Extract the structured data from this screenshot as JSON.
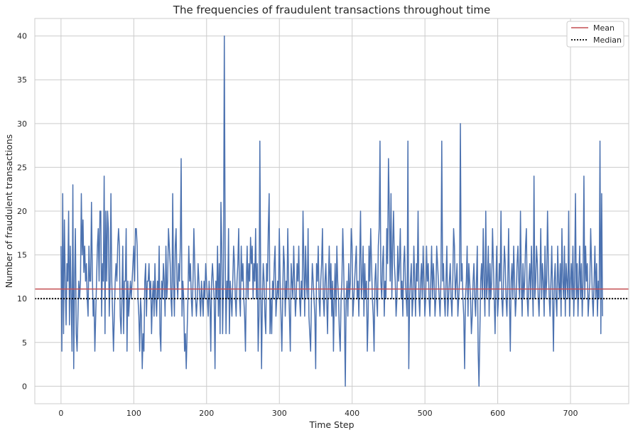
{
  "chart_data": {
    "type": "line",
    "title": "The frequencies of fraudulent transactions throughout time",
    "xlabel": "Time Step",
    "ylabel": "Number of fraudulent transactions",
    "xlim": [
      -36,
      780
    ],
    "ylim": [
      -2,
      42
    ],
    "xticks": [
      0,
      100,
      200,
      300,
      400,
      500,
      600,
      700
    ],
    "yticks": [
      0,
      5,
      10,
      15,
      20,
      25,
      30,
      35,
      40
    ],
    "grid": true,
    "legend_position": "top-right",
    "colors": {
      "series": "#4c72b0",
      "mean": "#c44e52",
      "median": "#000000",
      "grid": "#cccccc",
      "frame": "#cccccc"
    },
    "series": [
      {
        "values": [
          16,
          4,
          22,
          6,
          19,
          12,
          7,
          14,
          12,
          20,
          7,
          16,
          10,
          4,
          23,
          2,
          12,
          18,
          6,
          4,
          8,
          12,
          10,
          12,
          22,
          15,
          19,
          13,
          16,
          12,
          14,
          10,
          8,
          16,
          12,
          12,
          21,
          13,
          8,
          10,
          4,
          8,
          12,
          16,
          18,
          12,
          20,
          20,
          8,
          14,
          12,
          24,
          6,
          20,
          12,
          20,
          18,
          8,
          12,
          22,
          12,
          8,
          4,
          8,
          12,
          14,
          12,
          16,
          18,
          16,
          8,
          6,
          10,
          16,
          6,
          12,
          12,
          18,
          4,
          12,
          8,
          10,
          12,
          10,
          12,
          14,
          16,
          12,
          18,
          18,
          16,
          10,
          8,
          4,
          10,
          8,
          2,
          6,
          4,
          12,
          14,
          8,
          12,
          12,
          14,
          10,
          12,
          6,
          10,
          12,
          8,
          14,
          10,
          8,
          12,
          10,
          16,
          6,
          4,
          12,
          10,
          14,
          12,
          8,
          16,
          10,
          12,
          18,
          16,
          14,
          10,
          8,
          22,
          12,
          8,
          16,
          18,
          12,
          10,
          14,
          12,
          16,
          26,
          8,
          12,
          10,
          4,
          6,
          2,
          6,
          10,
          16,
          12,
          14,
          10,
          8,
          12,
          18,
          14,
          10,
          8,
          10,
          14,
          12,
          10,
          8,
          12,
          10,
          8,
          12,
          10,
          14,
          12,
          10,
          8,
          12,
          10,
          4,
          12,
          14,
          12,
          10,
          2,
          12,
          10,
          16,
          8,
          14,
          6,
          21,
          16,
          6,
          12,
          40,
          16,
          6,
          12,
          10,
          18,
          6,
          12,
          10,
          8,
          12,
          16,
          14,
          10,
          8,
          12,
          14,
          18,
          10,
          8,
          16,
          12,
          14,
          10,
          8,
          4,
          12,
          16,
          10,
          14,
          12,
          17,
          14,
          16,
          10,
          14,
          12,
          18,
          10,
          14,
          4,
          8,
          28,
          12,
          2,
          10,
          14,
          12,
          8,
          6,
          14,
          12,
          18,
          22,
          6,
          10,
          6,
          12,
          10,
          14,
          16,
          8,
          10,
          12,
          10,
          18,
          12,
          8,
          4,
          10,
          16,
          14,
          8,
          12,
          10,
          18,
          12,
          8,
          4,
          14,
          12,
          10,
          16,
          12,
          8,
          10,
          14,
          12,
          16,
          10,
          8,
          12,
          10,
          20,
          14,
          8,
          16,
          12,
          10,
          18,
          8,
          6,
          4,
          10,
          14,
          12,
          10,
          8,
          2,
          14,
          12,
          16,
          10,
          8,
          12,
          14,
          18,
          10,
          8,
          12,
          14,
          10,
          6,
          12,
          16,
          10,
          14,
          8,
          12,
          4,
          10,
          14,
          8,
          16,
          12,
          10,
          6,
          4,
          10,
          12,
          18,
          14,
          8,
          0,
          10,
          12,
          8,
          14,
          10,
          12,
          18,
          16,
          8,
          10,
          12,
          14,
          16,
          10,
          12,
          8,
          14,
          20,
          10,
          12,
          16,
          8,
          14,
          10,
          12,
          4,
          8,
          16,
          12,
          18,
          14,
          10,
          8,
          4,
          12,
          14,
          10,
          8,
          16,
          18,
          28,
          12,
          10,
          14,
          16,
          8,
          12,
          10,
          18,
          14,
          26,
          20,
          12,
          22,
          10,
          16,
          20,
          14,
          12,
          8,
          10,
          16,
          12,
          14,
          18,
          10,
          12,
          8,
          14,
          16,
          12,
          10,
          8,
          28,
          2,
          10,
          12,
          14,
          8,
          10,
          16,
          12,
          8,
          14,
          12,
          20,
          10,
          8,
          12,
          14,
          10,
          16,
          12,
          8,
          10,
          16,
          12,
          14,
          10,
          8,
          12,
          16,
          10,
          14,
          12,
          8,
          10,
          16,
          14,
          12,
          10,
          8,
          12,
          28,
          12,
          14,
          10,
          8,
          12,
          16,
          8,
          10,
          12,
          14,
          10,
          8,
          12,
          18,
          16,
          10,
          12,
          14,
          8,
          10,
          12,
          30,
          12,
          14,
          10,
          8,
          2,
          10,
          12,
          16,
          8,
          14,
          12,
          10,
          6,
          8,
          12,
          14,
          10,
          8,
          12,
          16,
          4,
          0,
          6,
          12,
          14,
          10,
          18,
          12,
          8,
          20,
          10,
          12,
          16,
          8,
          14,
          10,
          12,
          18,
          14,
          10,
          6,
          12,
          16,
          8,
          10,
          14,
          12,
          20,
          10,
          8,
          12,
          16,
          14,
          10,
          8,
          12,
          18,
          10,
          4,
          12,
          14,
          10,
          16,
          12,
          8,
          10,
          14,
          16,
          12,
          10,
          20,
          12,
          8,
          14,
          10,
          12,
          16,
          18,
          10,
          8,
          12,
          14,
          10,
          16,
          12,
          8,
          24,
          10,
          12,
          16,
          14,
          10,
          8,
          12,
          18,
          10,
          14,
          12,
          8,
          16,
          10,
          12,
          20,
          14,
          10,
          8,
          12,
          16,
          10,
          4,
          12,
          14,
          10,
          8,
          16,
          12,
          10,
          14,
          8,
          18,
          12,
          10,
          16,
          8,
          14,
          12,
          10,
          20,
          8,
          12,
          14,
          10,
          16,
          8,
          12,
          22,
          10,
          14,
          8,
          12,
          16,
          10,
          14,
          8,
          12,
          24,
          10,
          16,
          12,
          14,
          8,
          10,
          12,
          18,
          14,
          10,
          8,
          12,
          16,
          10,
          14,
          8,
          12,
          10,
          28,
          6,
          22,
          8
        ]
      }
    ],
    "legend": [
      "Mean",
      "Median"
    ],
    "mean": 11.1,
    "median": 10
  }
}
